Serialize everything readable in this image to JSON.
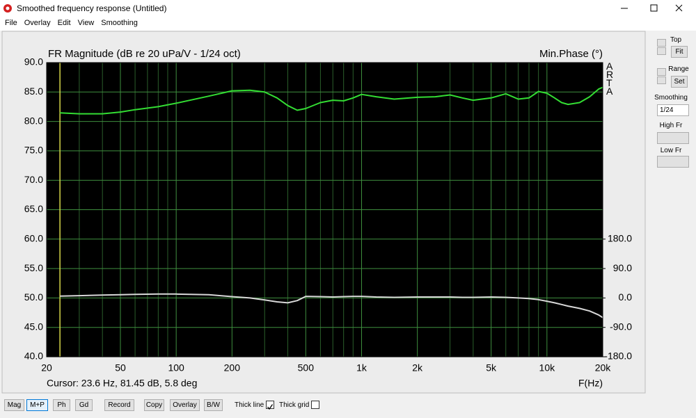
{
  "window": {
    "title": "Smoothed frequency response (Untitled)"
  },
  "menu": [
    "File",
    "Overlay",
    "Edit",
    "View",
    "Smoothing"
  ],
  "chart_data": {
    "type": "line",
    "title": "FR Magnitude (dB re 20 uPa/V - 1/24 oct)",
    "y2_title": "Min.Phase (°)",
    "watermark": "ARTA",
    "xlabel": "F(Hz)",
    "cursor": "Cursor: 23.6 Hz, 81.45 dB, 5.8 deg",
    "xscale": "log",
    "grid": true,
    "background": "#000000",
    "xlim": [
      20,
      20000
    ],
    "xticks": [
      20,
      50,
      100,
      200,
      500,
      {
        "value": 1000,
        "label": "1k"
      },
      {
        "value": 2000,
        "label": "2k"
      },
      {
        "value": 5000,
        "label": "5k"
      },
      {
        "value": 10000,
        "label": "10k"
      },
      {
        "value": 20000,
        "label": "20k"
      }
    ],
    "ylim": [
      40,
      90
    ],
    "yticks": [
      {
        "value": 40,
        "label": "40.0"
      },
      {
        "value": 45,
        "label": "45.0"
      },
      {
        "value": 50,
        "label": "50.0"
      },
      {
        "value": 55,
        "label": "55.0"
      },
      {
        "value": 60,
        "label": "60.0"
      },
      {
        "value": 65,
        "label": "65.0"
      },
      {
        "value": 70,
        "label": "70.0"
      },
      {
        "value": 75,
        "label": "75.0"
      },
      {
        "value": 80,
        "label": "80.0"
      },
      {
        "value": 85,
        "label": "85.0"
      },
      {
        "value": 90,
        "label": "90.0"
      }
    ],
    "y2lim": [
      -180,
      720
    ],
    "y2ticks": [
      {
        "value": -180,
        "label": "-180.0"
      },
      {
        "value": -90,
        "label": "-90.0"
      },
      {
        "value": 0,
        "label": "0.0"
      },
      {
        "value": 90,
        "label": "90.0"
      },
      {
        "value": 180,
        "label": "180.0"
      }
    ],
    "x": [
      23.6,
      30,
      40,
      50,
      60,
      80,
      100,
      150,
      200,
      250,
      300,
      350,
      400,
      450,
      500,
      600,
      700,
      800,
      900,
      1000,
      1200,
      1500,
      2000,
      2500,
      3000,
      3500,
      4000,
      5000,
      6000,
      7000,
      8000,
      9000,
      10000,
      11000,
      12000,
      13000,
      15000,
      17000,
      19000,
      20000
    ],
    "series": [
      {
        "name": "Magnitude",
        "color": "#33dd33",
        "values": [
          81.45,
          81.3,
          81.3,
          81.6,
          82.0,
          82.5,
          83.1,
          84.3,
          85.2,
          85.3,
          85.0,
          84.0,
          82.7,
          81.9,
          82.2,
          83.2,
          83.6,
          83.5,
          84.0,
          84.6,
          84.2,
          83.8,
          84.1,
          84.2,
          84.5,
          84.0,
          83.6,
          84.0,
          84.7,
          83.8,
          84.0,
          85.1,
          84.8,
          84.0,
          83.2,
          82.9,
          83.2,
          84.2,
          85.5,
          85.8
        ]
      },
      {
        "name": "Phase",
        "color": "#d8d8d8",
        "axis": "y2",
        "values": [
          5.8,
          7,
          9,
          10,
          11,
          12,
          12,
          10,
          4,
          0,
          -6,
          -12,
          -15,
          -8,
          5,
          4,
          3,
          4,
          5,
          5,
          3,
          2,
          3,
          3,
          3,
          2,
          2,
          3,
          2,
          0,
          -2,
          -5,
          -10,
          -15,
          -20,
          -25,
          -32,
          -40,
          -52,
          -60
        ]
      }
    ]
  },
  "sidebar": {
    "top_label": "Top",
    "fit_button": "Fit",
    "range_label": "Range",
    "set_button": "Set",
    "smoothing_label": "Smoothing",
    "smoothing_value": "1/24",
    "high_fr_label": "High Fr",
    "low_fr_label": "Low Fr"
  },
  "toolbar": {
    "buttons": [
      {
        "label": "Mag"
      },
      {
        "label": "M+P",
        "active": true
      },
      {
        "label": "Ph"
      },
      {
        "label": "Gd"
      },
      {
        "label": "Record"
      },
      {
        "label": "Copy"
      },
      {
        "label": "Overlay"
      },
      {
        "label": "B/W"
      }
    ],
    "checkboxes": [
      {
        "label": "Thick line",
        "checked": true
      },
      {
        "label": "Thick grid",
        "checked": false
      }
    ]
  }
}
